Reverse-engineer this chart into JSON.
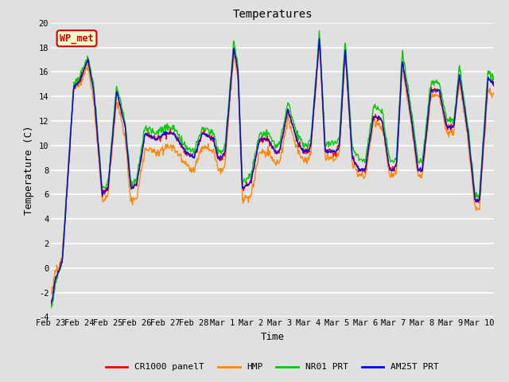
{
  "title": "Temperatures",
  "xlabel": "Time",
  "ylabel": "Temperature (C)",
  "ylim": [
    -4,
    20
  ],
  "xlim_start": 0,
  "xlim_end": 15.5,
  "background_color": "#e0e0e0",
  "plot_bg_color": "#e0e0e0",
  "grid_color": "white",
  "annotation_text": "WP_met",
  "annotation_facecolor": "#ffffcc",
  "annotation_edgecolor": "#cc0000",
  "annotation_textcolor": "#cc0000",
  "xtick_labels": [
    "Feb 23",
    "Feb 24",
    "Feb 25",
    "Feb 26",
    "Feb 27",
    "Feb 28",
    "Mar 1",
    "Mar 2",
    "Mar 3",
    "Mar 4",
    "Mar 5",
    "Mar 6",
    "Mar 7",
    "Mar 8",
    "Mar 9",
    "Mar 10"
  ],
  "xtick_positions": [
    0,
    1,
    2,
    3,
    4,
    5,
    6,
    7,
    8,
    9,
    10,
    11,
    12,
    13,
    14,
    15
  ],
  "ytick_labels": [
    "-4",
    "-2",
    "0",
    "2",
    "4",
    "6",
    "8",
    "10",
    "12",
    "14",
    "16",
    "18",
    "20"
  ],
  "ytick_positions": [
    -4,
    -2,
    0,
    2,
    4,
    6,
    8,
    10,
    12,
    14,
    16,
    18,
    20
  ],
  "legend_entries": [
    "CR1000 panelT",
    "HMP",
    "NR01 PRT",
    "AM25T PRT"
  ],
  "legend_colors": [
    "#ff0000",
    "#ff8800",
    "#00cc00",
    "#0000ff"
  ],
  "font_family": "monospace",
  "font_size": 9
}
